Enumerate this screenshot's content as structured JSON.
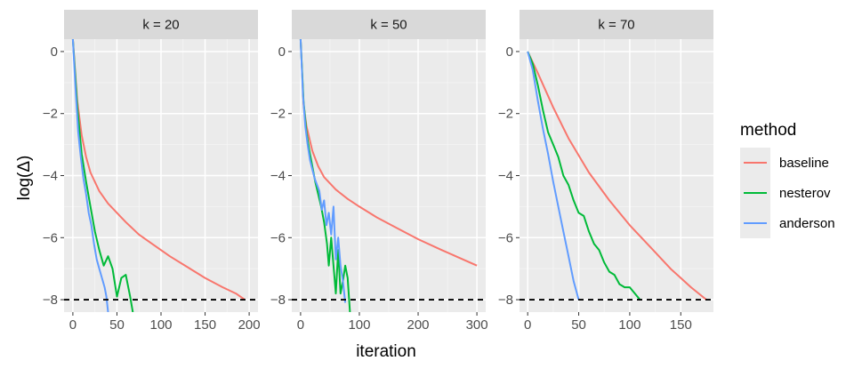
{
  "chart_data": {
    "type": "line",
    "xlabel": "iteration",
    "ylabel": "log(Δ)",
    "ylim": [
      -8.4,
      0.4
    ],
    "yticks": [
      0,
      -2,
      -4,
      -6,
      -8
    ],
    "ytick_labels": [
      "0",
      "−2",
      "−4",
      "−6",
      "−8"
    ],
    "threshold": -8,
    "legend": {
      "title": "method",
      "position": "right",
      "items": [
        {
          "label": "baseline",
          "color": "#F8766D"
        },
        {
          "label": "nesterov",
          "color": "#00BA38"
        },
        {
          "label": "anderson",
          "color": "#619CFF"
        }
      ]
    },
    "panels": [
      {
        "label": "k = 20",
        "xlim": [
          -10,
          210
        ],
        "xticks": [
          0,
          50,
          100,
          150,
          200
        ],
        "series": [
          {
            "name": "baseline",
            "x": [
              0,
              5,
              10,
              15,
              20,
              30,
              40,
              50,
              60,
              75,
              90,
              110,
              130,
              150,
              170,
              185,
              195
            ],
            "y": [
              0.4,
              -1.6,
              -2.7,
              -3.4,
              -3.9,
              -4.5,
              -4.9,
              -5.2,
              -5.5,
              -5.9,
              -6.2,
              -6.6,
              -6.95,
              -7.3,
              -7.6,
              -7.8,
              -8.0
            ]
          },
          {
            "name": "nesterov",
            "x": [
              0,
              5,
              10,
              15,
              20,
              25,
              30,
              35,
              40,
              45,
              50,
              55,
              60,
              65,
              68
            ],
            "y": [
              0.4,
              -1.8,
              -3.3,
              -4.2,
              -5.0,
              -5.8,
              -6.4,
              -6.9,
              -6.6,
              -7.0,
              -7.9,
              -7.3,
              -7.2,
              -7.9,
              -8.4
            ]
          },
          {
            "name": "anderson",
            "x": [
              0,
              3,
              6,
              9,
              12,
              15,
              18,
              21,
              24,
              27,
              30,
              33,
              36,
              38,
              40
            ],
            "y": [
              0.4,
              -1.2,
              -2.6,
              -3.4,
              -4.1,
              -4.6,
              -5.2,
              -5.6,
              -6.2,
              -6.7,
              -7.0,
              -7.3,
              -7.6,
              -7.9,
              -8.4
            ]
          }
        ]
      },
      {
        "label": "k = 50",
        "xlim": [
          -15,
          315
        ],
        "xticks": [
          0,
          100,
          200,
          300
        ],
        "series": [
          {
            "name": "baseline",
            "x": [
              0,
              5,
              10,
              20,
              30,
              40,
              60,
              80,
              100,
              130,
              160,
              200,
              240,
              270,
              300
            ],
            "y": [
              0.4,
              -1.7,
              -2.4,
              -3.2,
              -3.7,
              -4.05,
              -4.45,
              -4.75,
              -5.0,
              -5.35,
              -5.65,
              -6.05,
              -6.4,
              -6.65,
              -6.9
            ]
          },
          {
            "name": "nesterov",
            "x": [
              0,
              5,
              10,
              15,
              20,
              25,
              30,
              35,
              40,
              45,
              48,
              52,
              56,
              60,
              64,
              68,
              72,
              76,
              80,
              84
            ],
            "y": [
              0.4,
              -1.6,
              -2.6,
              -3.2,
              -3.7,
              -4.2,
              -4.6,
              -5.0,
              -5.5,
              -6.2,
              -6.9,
              -6.0,
              -6.9,
              -7.8,
              -6.4,
              -7.8,
              -7.4,
              -6.9,
              -7.3,
              -8.4
            ]
          },
          {
            "name": "anderson",
            "x": [
              0,
              4,
              8,
              12,
              16,
              20,
              24,
              28,
              32,
              36,
              40,
              44,
              48,
              52,
              56,
              60,
              64,
              68,
              72,
              76
            ],
            "y": [
              0.4,
              -1.4,
              -2.4,
              -3.0,
              -3.5,
              -3.8,
              -4.1,
              -4.3,
              -4.5,
              -5.1,
              -4.8,
              -5.6,
              -5.2,
              -5.9,
              -5.0,
              -6.7,
              -6.0,
              -6.9,
              -7.4,
              -8.1
            ]
          }
        ]
      },
      {
        "label": "k = 70",
        "xlim": [
          -8,
          182
        ],
        "xticks": [
          0,
          50,
          100,
          150
        ],
        "series": [
          {
            "name": "baseline",
            "x": [
              0,
              10,
              25,
              40,
              60,
              80,
              100,
              120,
              140,
              160,
              175
            ],
            "y": [
              0,
              -0.7,
              -1.8,
              -2.8,
              -3.9,
              -4.8,
              -5.6,
              -6.3,
              -7.0,
              -7.6,
              -8.0
            ]
          },
          {
            "name": "nesterov",
            "x": [
              0,
              5,
              10,
              15,
              20,
              25,
              30,
              35,
              40,
              45,
              50,
              55,
              60,
              65,
              70,
              75,
              80,
              85,
              90,
              95,
              100,
              105,
              110
            ],
            "y": [
              0,
              -0.4,
              -1.1,
              -1.9,
              -2.6,
              -3.0,
              -3.4,
              -4.0,
              -4.3,
              -4.8,
              -5.2,
              -5.3,
              -5.8,
              -6.2,
              -6.4,
              -6.8,
              -7.1,
              -7.2,
              -7.5,
              -7.6,
              -7.6,
              -7.8,
              -8.0
            ]
          },
          {
            "name": "anderson",
            "x": [
              0,
              5,
              10,
              15,
              20,
              25,
              30,
              35,
              40,
              45,
              50
            ],
            "y": [
              0,
              -0.6,
              -1.6,
              -2.5,
              -3.3,
              -4.2,
              -5.0,
              -5.8,
              -6.6,
              -7.4,
              -8.0
            ]
          }
        ]
      }
    ]
  }
}
